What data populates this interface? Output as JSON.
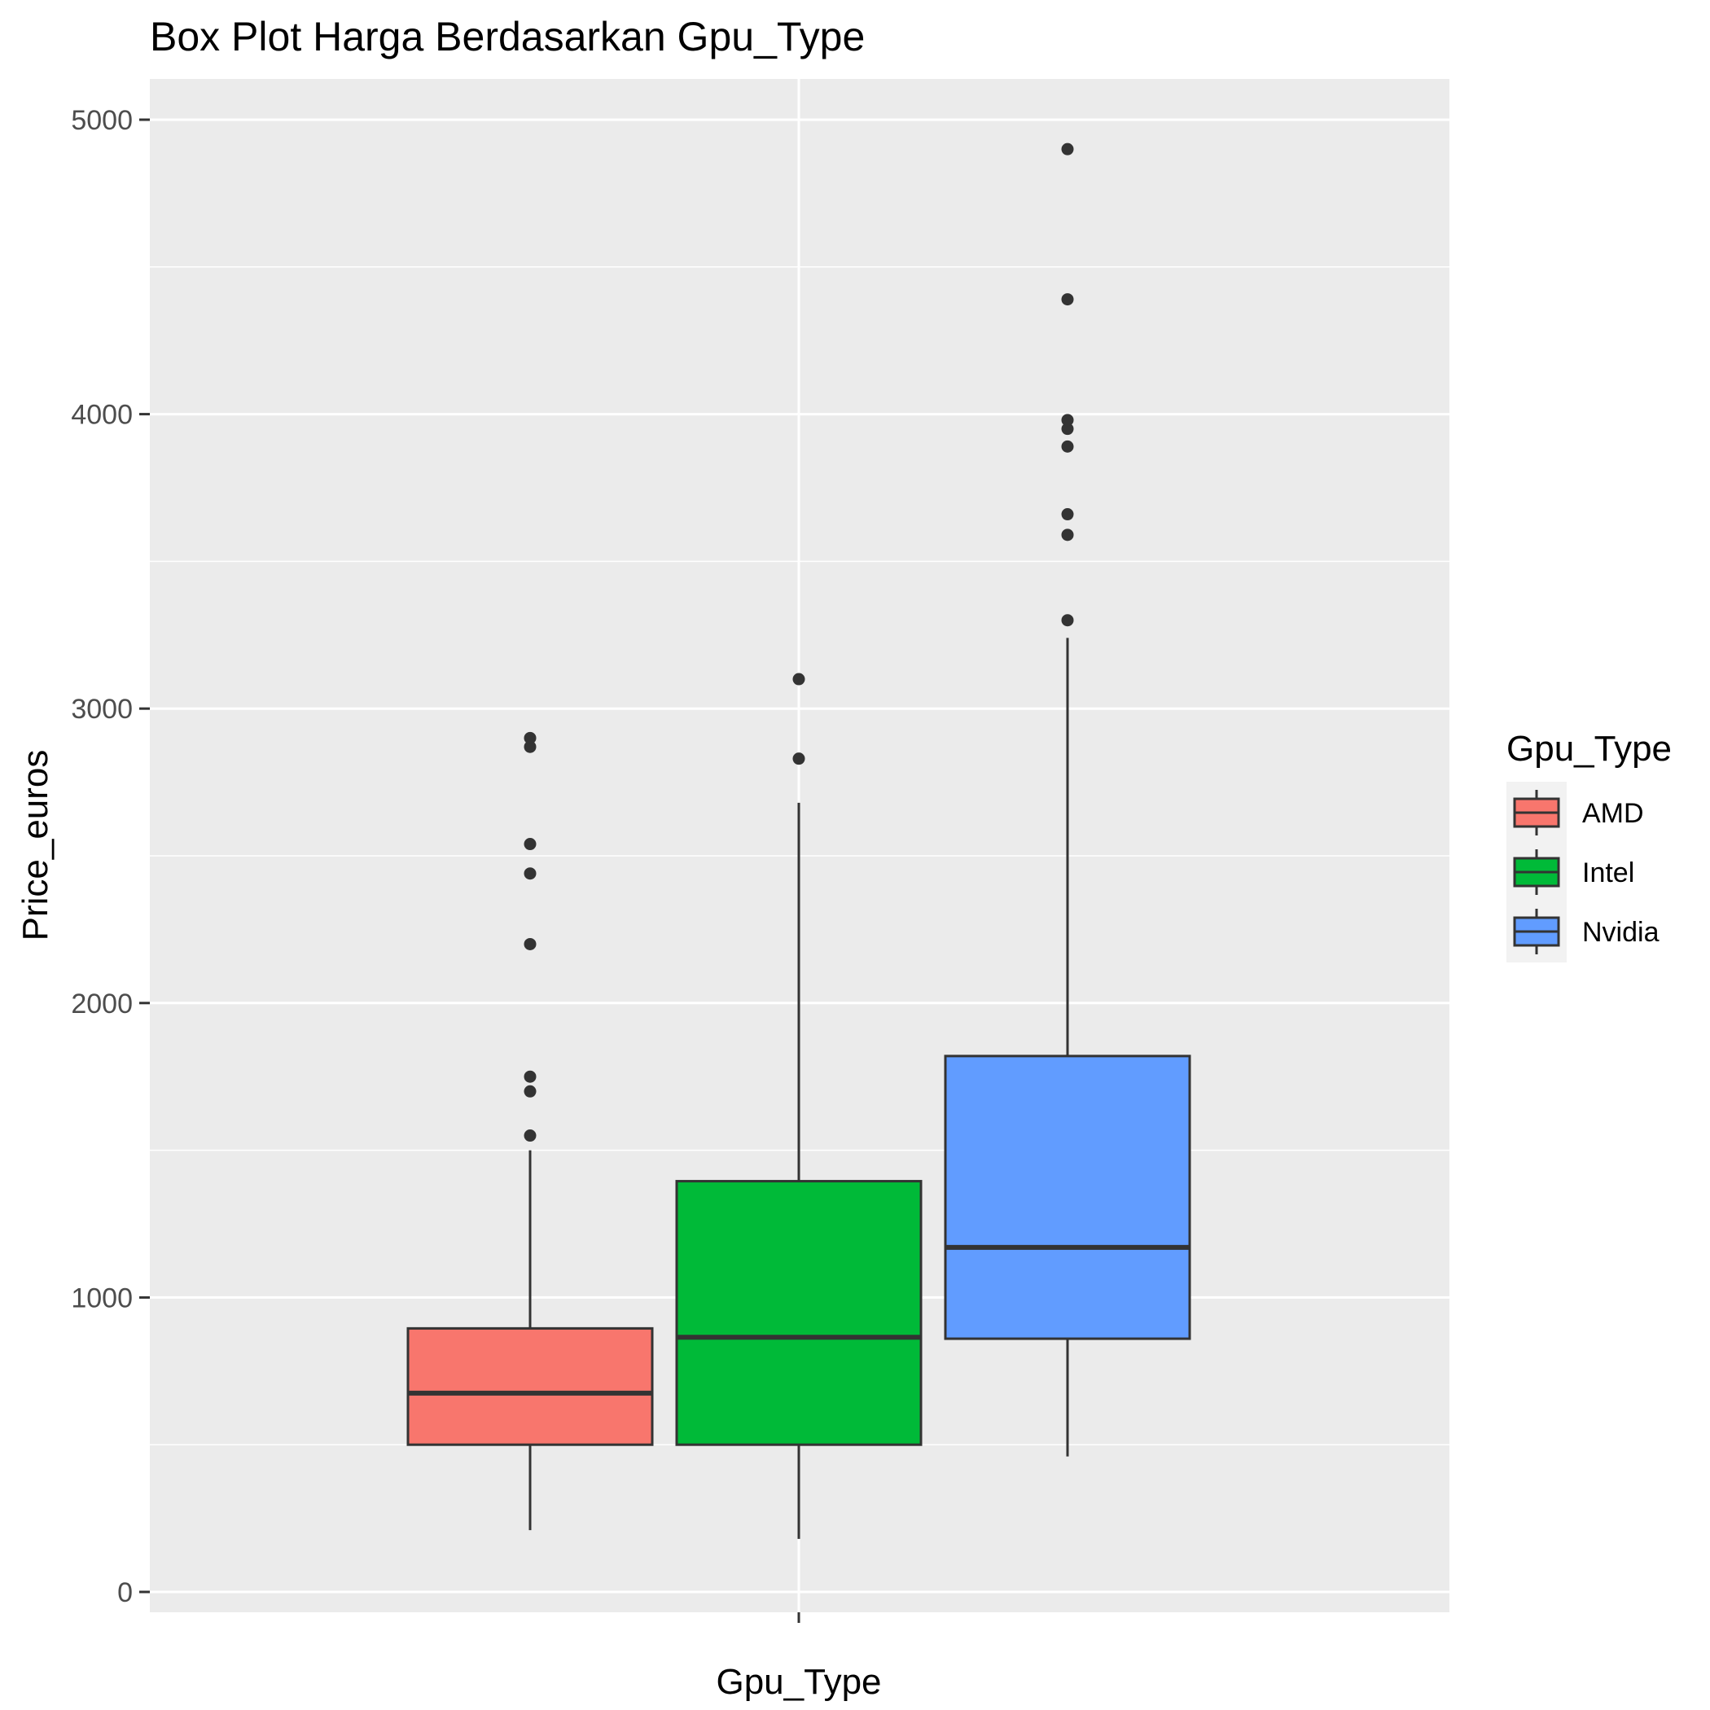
{
  "chart_data": {
    "type": "box",
    "title": "Box Plot Harga Berdasarkan Gpu_Type",
    "xlabel": "Gpu_Type",
    "ylabel": "Price_euros",
    "ylim": [
      -70,
      5130
    ],
    "yticks": [
      0,
      1000,
      2000,
      3000,
      4000,
      5000
    ],
    "grid": true,
    "legend": {
      "title": "Gpu_Type",
      "position": "right"
    },
    "series": [
      {
        "name": "AMD",
        "color": "#F8766D",
        "whisker_low": 210,
        "q1": 500,
        "median": 675,
        "q3": 895,
        "whisker_high": 1500,
        "outliers": [
          1550,
          1700,
          1750,
          2200,
          2440,
          2540,
          2870,
          2900
        ]
      },
      {
        "name": "Intel",
        "color": "#00BA38",
        "whisker_low": 180,
        "q1": 500,
        "median": 865,
        "q3": 1395,
        "whisker_high": 2680,
        "outliers": [
          2830,
          3100
        ]
      },
      {
        "name": "Nvidia",
        "color": "#619CFF",
        "whisker_low": 460,
        "q1": 860,
        "median": 1170,
        "q3": 1820,
        "whisker_high": 3240,
        "outliers": [
          3300,
          3590,
          3660,
          3890,
          3950,
          3980,
          4390,
          4900
        ]
      }
    ]
  }
}
